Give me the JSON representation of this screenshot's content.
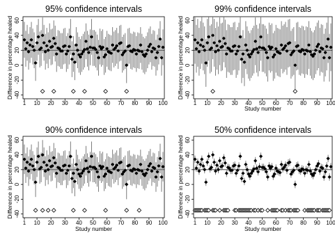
{
  "figure": {
    "ylabel": "Difference in percentage healed",
    "xlabel": "Study number",
    "x_ticks": [
      1,
      10,
      20,
      30,
      40,
      50,
      60,
      70,
      80,
      90,
      100
    ],
    "y_ticks": [
      -40,
      -20,
      0,
      20,
      40,
      60
    ],
    "reference_line": 20
  },
  "chart_data": [
    {
      "type": "scatter",
      "title": "95% confidence intervals",
      "xlabel": "Study number",
      "ylabel": "Difference in percentage healed",
      "xlim": [
        0,
        101
      ],
      "ylim": [
        -45,
        65
      ],
      "grid": false,
      "reference_line": 20,
      "studies": 100,
      "estimates": [
        34,
        22,
        30,
        18,
        27,
        34,
        25,
        20,
        3,
        30,
        38,
        21,
        23,
        40,
        30,
        18,
        26,
        20,
        32,
        24,
        25,
        36,
        29,
        15,
        23,
        22,
        19,
        19,
        25,
        26,
        15,
        19,
        25,
        38,
        8,
        15,
        4,
        27,
        20,
        14,
        11,
        15,
        18,
        21,
        32,
        22,
        17,
        24,
        38,
        23,
        23,
        21,
        17,
        10,
        25,
        22,
        24,
        11,
        14,
        22,
        18,
        17,
        16,
        27,
        21,
        23,
        26,
        19,
        29,
        30,
        14,
        17,
        19,
        0,
        25,
        26,
        19,
        18,
        21,
        20,
        15,
        20,
        19,
        27,
        18,
        14,
        12,
        15,
        20,
        25,
        28,
        18,
        23,
        22,
        10,
        17,
        25,
        35,
        10,
        24
      ],
      "ci_halfwidth": 24,
      "non_covering_intervals": [
        14,
        22,
        36,
        44,
        59,
        74
      ],
      "non_covering_marker": "open-diamond",
      "non_covering_marker_y": -35
    },
    {
      "type": "scatter",
      "title": "99% confidence intervals",
      "xlabel": "Study number",
      "ylabel": "Difference in percentage healed",
      "xlim": [
        0,
        101
      ],
      "ylim": [
        -45,
        65
      ],
      "grid": false,
      "reference_line": 20,
      "studies": 100,
      "estimates": [
        34,
        22,
        30,
        18,
        27,
        34,
        25,
        20,
        3,
        30,
        38,
        21,
        23,
        40,
        30,
        18,
        26,
        20,
        32,
        24,
        25,
        36,
        29,
        15,
        23,
        22,
        19,
        19,
        25,
        26,
        15,
        19,
        25,
        38,
        8,
        15,
        4,
        27,
        20,
        14,
        11,
        15,
        18,
        21,
        32,
        22,
        17,
        24,
        38,
        23,
        23,
        21,
        17,
        10,
        25,
        22,
        24,
        11,
        14,
        22,
        18,
        17,
        16,
        27,
        21,
        23,
        26,
        19,
        29,
        30,
        14,
        17,
        19,
        0,
        25,
        26,
        19,
        18,
        21,
        20,
        15,
        20,
        19,
        27,
        18,
        14,
        12,
        15,
        20,
        25,
        28,
        18,
        23,
        22,
        10,
        17,
        25,
        35,
        10,
        24
      ],
      "ci_halfwidth": 32,
      "non_covering_intervals": [
        14,
        74
      ],
      "non_covering_marker": "open-diamond",
      "non_covering_marker_y": -35
    },
    {
      "type": "scatter",
      "title": "90% confidence intervals",
      "xlabel": "Study number",
      "ylabel": "Difference in percentage healed",
      "xlim": [
        0,
        101
      ],
      "ylim": [
        -45,
        65
      ],
      "grid": false,
      "reference_line": 20,
      "studies": 100,
      "estimates": [
        34,
        22,
        30,
        18,
        27,
        34,
        25,
        20,
        3,
        30,
        38,
        21,
        23,
        40,
        30,
        18,
        26,
        20,
        32,
        24,
        25,
        36,
        29,
        15,
        23,
        22,
        19,
        19,
        25,
        26,
        15,
        19,
        25,
        38,
        8,
        15,
        4,
        27,
        20,
        14,
        11,
        15,
        18,
        21,
        32,
        22,
        17,
        24,
        38,
        23,
        23,
        21,
        17,
        10,
        25,
        22,
        24,
        11,
        14,
        22,
        18,
        17,
        16,
        27,
        21,
        23,
        26,
        19,
        29,
        30,
        14,
        17,
        19,
        0,
        25,
        26,
        19,
        18,
        21,
        20,
        15,
        20,
        19,
        27,
        18,
        14,
        12,
        15,
        20,
        25,
        28,
        18,
        23,
        22,
        10,
        17,
        25,
        35,
        10,
        24
      ],
      "ci_halfwidth": 20,
      "non_covering_intervals": [
        9,
        14,
        18,
        22,
        36,
        44,
        59,
        74,
        83
      ],
      "non_covering_marker": "open-diamond",
      "non_covering_marker_y": -35
    },
    {
      "type": "scatter",
      "title": "50% confidence intervals",
      "xlabel": "Study number",
      "ylabel": "Difference in percentage healed",
      "xlim": [
        0,
        101
      ],
      "ylim": [
        -45,
        65
      ],
      "grid": false,
      "reference_line": 20,
      "studies": 100,
      "estimates": [
        34,
        22,
        30,
        18,
        27,
        34,
        25,
        20,
        3,
        30,
        38,
        21,
        23,
        40,
        30,
        18,
        26,
        20,
        32,
        24,
        25,
        36,
        29,
        15,
        23,
        22,
        19,
        19,
        25,
        26,
        15,
        19,
        25,
        38,
        8,
        15,
        4,
        27,
        20,
        14,
        11,
        15,
        18,
        21,
        32,
        22,
        17,
        24,
        38,
        23,
        23,
        21,
        17,
        10,
        25,
        22,
        24,
        11,
        14,
        22,
        18,
        17,
        16,
        27,
        21,
        23,
        26,
        19,
        29,
        30,
        14,
        17,
        19,
        0,
        25,
        26,
        19,
        18,
        21,
        20,
        15,
        20,
        19,
        27,
        18,
        14,
        12,
        15,
        20,
        25,
        28,
        18,
        23,
        22,
        10,
        17,
        25,
        35,
        10,
        24
      ],
      "ci_halfwidth": 5,
      "non_covering_intervals": [
        1,
        2,
        3,
        4,
        5,
        6,
        8,
        9,
        10,
        11,
        14,
        15,
        16,
        19,
        22,
        23,
        24,
        25,
        30,
        31,
        33,
        34,
        35,
        36,
        37,
        38,
        39,
        40,
        41,
        42,
        44,
        45,
        47,
        49,
        50,
        54,
        57,
        58,
        59,
        60,
        61,
        64,
        65,
        67,
        69,
        70,
        71,
        73,
        74,
        75,
        76,
        81,
        83,
        84,
        85,
        86,
        87,
        88,
        90,
        91,
        92,
        94,
        95,
        96,
        97,
        98,
        99
      ],
      "non_covering_marker": "open-diamond",
      "non_covering_marker_y": -35
    }
  ]
}
